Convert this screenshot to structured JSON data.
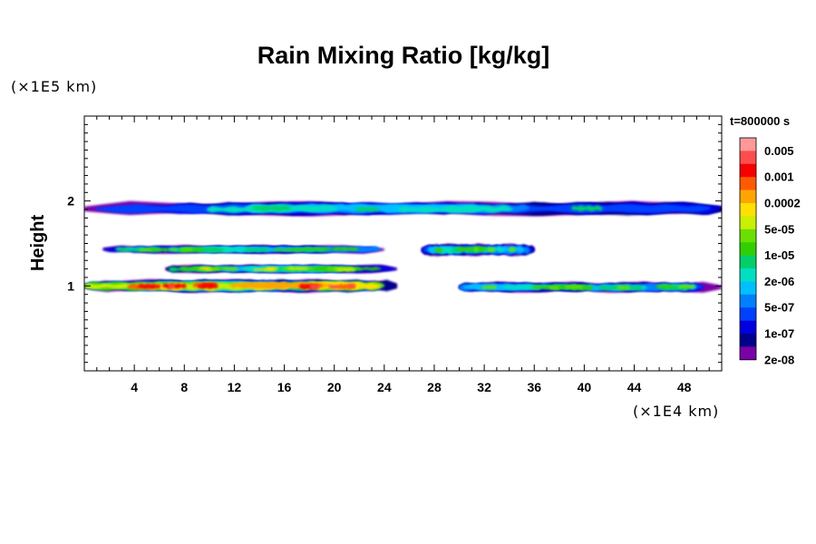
{
  "chart_data": {
    "type": "heatmap",
    "title": "Rain Mixing Ratio [kg/kg]",
    "ylabel": "Height",
    "y_unit": "(×1E5 km)",
    "x_unit": "(×1E4 km)",
    "time_label": "t=800000 s",
    "xlim": [
      0,
      51
    ],
    "ylim": [
      0,
      3
    ],
    "x_ticks": [
      "4",
      "8",
      "12",
      "16",
      "20",
      "24",
      "28",
      "32",
      "36",
      "40",
      "44",
      "48"
    ],
    "y_ticks": [
      "1",
      "2"
    ],
    "scale": "log",
    "legend_placement": "right",
    "colorbar": {
      "labels": [
        "0.005",
        "0.001",
        "0.0002",
        "5e-05",
        "1e-05",
        "2e-06",
        "5e-07",
        "1e-07",
        "2e-08"
      ],
      "colors": [
        "#ff9999",
        "#ff4d4d",
        "#f70000",
        "#ff5a00",
        "#ffa500",
        "#ffe000",
        "#c8f000",
        "#6ae000",
        "#30d000",
        "#00d06a",
        "#00e0c0",
        "#00c0ff",
        "#0080ff",
        "#0040ff",
        "#0000e0",
        "#00008c",
        "#7a00a8"
      ]
    },
    "bands": [
      {
        "x": [
          0,
          51
        ],
        "y": [
          1.82,
          2.0
        ],
        "max_level": "1e-05"
      },
      {
        "x": [
          1.5,
          24
        ],
        "y": [
          1.38,
          1.48
        ],
        "max_level": "5e-05"
      },
      {
        "x": [
          27,
          36
        ],
        "y": [
          1.35,
          1.5
        ],
        "max_level": "5e-05"
      },
      {
        "x": [
          0,
          25
        ],
        "y": [
          0.92,
          1.08
        ],
        "max_level": "0.005"
      },
      {
        "x": [
          30,
          51
        ],
        "y": [
          0.92,
          1.05
        ],
        "max_level": "5e-05"
      },
      {
        "x": [
          6.5,
          25
        ],
        "y": [
          1.15,
          1.25
        ],
        "max_level": "0.0002"
      }
    ]
  }
}
